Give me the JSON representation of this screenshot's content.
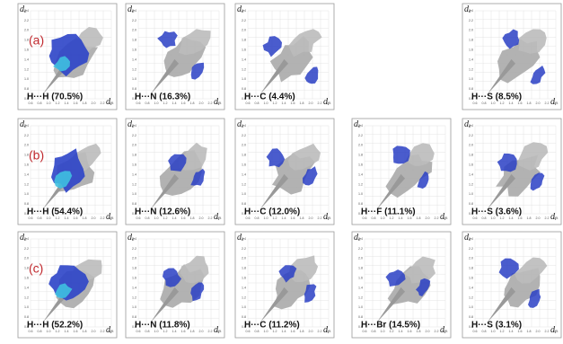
{
  "axis": {
    "x_label": "d",
    "x_sub": "i",
    "y_label": "d",
    "y_sub": "e",
    "xticks": [
      "0.6",
      "0.8",
      "1.0",
      "1.2",
      "1.4",
      "1.6",
      "1.8",
      "2.0",
      "2.2",
      "2.4"
    ],
    "yticks": [
      "2.4",
      "2.2",
      "2.0",
      "1.8",
      "1.6",
      "1.4",
      "1.2",
      "1.0",
      "0.8",
      "0.6"
    ]
  },
  "rows": [
    {
      "label": "(a)",
      "panels": [
        {
          "contact": "H···H (70.5%)"
        },
        {
          "contact": "H···N (16.3%)"
        },
        {
          "contact": "H···C (4.4%)"
        },
        {
          "contact": "H···S (8.5%)"
        }
      ]
    },
    {
      "label": "(b)",
      "panels": [
        {
          "contact": "H···H (54.4%)"
        },
        {
          "contact": "H···N (12.6%)"
        },
        {
          "contact": "H···C (12.0%)"
        },
        {
          "contact": "H···F (11.1%)"
        },
        {
          "contact": "H···S (3.6%)"
        }
      ]
    },
    {
      "label": "(c)",
      "panels": [
        {
          "contact": "H···H (52.2%)"
        },
        {
          "contact": "H···N (11.8%)"
        },
        {
          "contact": "H···C (11.2%)"
        },
        {
          "contact": "H···Br (14.5%)"
        },
        {
          "contact": "H···S (3.1%)"
        }
      ]
    }
  ]
}
